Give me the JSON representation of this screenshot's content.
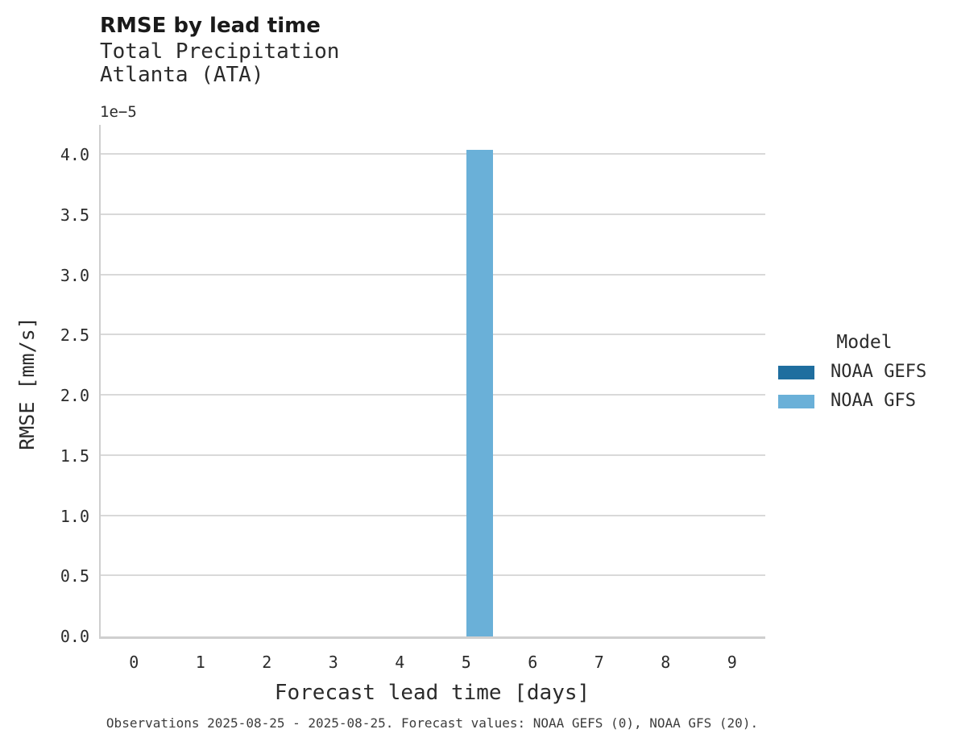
{
  "chart_data": {
    "type": "bar",
    "title": "RMSE by lead time",
    "subtitle": [
      "Total Precipitation",
      "Atlanta (ATA)"
    ],
    "xlabel": "Forecast lead time [days]",
    "ylabel": "RMSE [mm/s]",
    "y_scale_label": "1e−5",
    "categories": [
      "0",
      "1",
      "2",
      "3",
      "4",
      "5",
      "6",
      "7",
      "8",
      "9"
    ],
    "ylim": [
      0,
      4.25
    ],
    "yticks": [
      0,
      0.5,
      1,
      1.5,
      2,
      2.5,
      3,
      3.5,
      4
    ],
    "ytick_labels": [
      "0.0",
      "0.5",
      "1.0",
      "1.5",
      "2.0",
      "2.5",
      "3.0",
      "3.5",
      "4.0"
    ],
    "grid": "horizontal",
    "bar_group_width_fraction": 0.8,
    "legend": {
      "title": "Model",
      "position": "right",
      "entries": [
        {
          "label": "NOAA GEFS",
          "color": "#1f6e9f"
        },
        {
          "label": "NOAA GFS",
          "color": "#6ab0d8"
        }
      ]
    },
    "series": [
      {
        "name": "NOAA GEFS",
        "color": "#1f6e9f",
        "values": [
          null,
          null,
          null,
          null,
          null,
          null,
          null,
          null,
          null,
          null
        ]
      },
      {
        "name": "NOAA GFS",
        "color": "#6ab0d8",
        "values": [
          null,
          null,
          null,
          null,
          null,
          4.04,
          null,
          null,
          null,
          null
        ]
      }
    ],
    "caption": "Observations 2025-08-25 - 2025-08-25. Forecast values: NOAA GEFS (0), NOAA GFS (20)."
  },
  "colors": {
    "gridline": "#d9d9d9",
    "axis_spine": "#cfcfcf",
    "background": "#ffffff",
    "title_text": "#1a1a1a",
    "body_text": "#2b2b2b",
    "caption_text": "#3d3d3d"
  }
}
